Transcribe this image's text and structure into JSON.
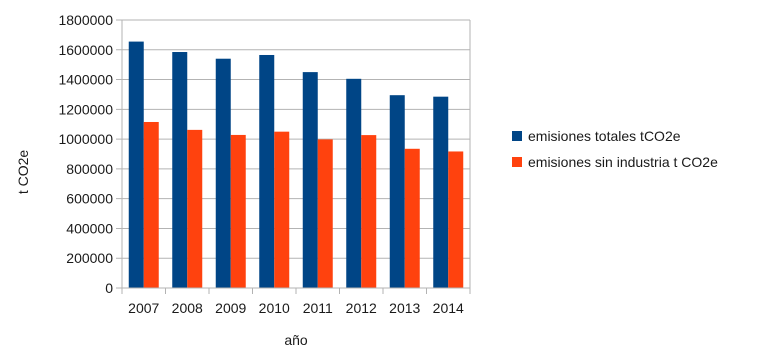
{
  "chart_data": {
    "type": "bar",
    "title": "",
    "xlabel": "año",
    "ylabel": "t CO2e",
    "categories": [
      "2007",
      "2008",
      "2009",
      "2010",
      "2011",
      "2012",
      "2013",
      "2014"
    ],
    "ylim": [
      0,
      1800000
    ],
    "yticks": [
      "0",
      "200000",
      "400000",
      "600000",
      "800000",
      "1000000",
      "1200000",
      "1400000",
      "1600000",
      "1800000"
    ],
    "grid": true,
    "legend_position": "right",
    "series": [
      {
        "name": "emisiones totales tCO2e",
        "color": "#004586",
        "values": [
          1655000,
          1585000,
          1540000,
          1565000,
          1450000,
          1405000,
          1295000,
          1285000
        ]
      },
      {
        "name": "emisiones sin industria t CO2e",
        "color": "#ff420e",
        "values": [
          1115000,
          1062000,
          1028000,
          1050000,
          998000,
          1027000,
          935000,
          917000
        ]
      }
    ]
  }
}
